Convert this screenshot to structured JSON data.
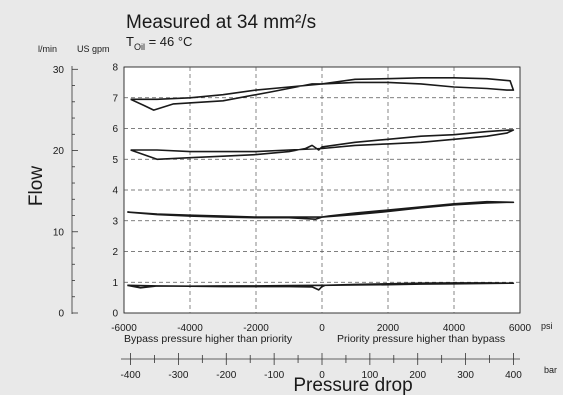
{
  "chart_data": {
    "type": "line",
    "title": "Measured at 34 mm²/s",
    "subtitle": {
      "prefix": "T",
      "sub": "Oil",
      "suffix": " = 46 °C"
    },
    "ylabel": "Flow",
    "xlabel": "Pressure drop",
    "y_units": {
      "lmin": "l/min",
      "usgpm": "US gpm"
    },
    "x_units": {
      "psi": "psi",
      "bar": "bar"
    },
    "x_annotations": {
      "left": "Bypass pressure higher than priority",
      "right": "Priority pressure higher than bypass"
    },
    "xlim_psi": [
      -6000,
      6000
    ],
    "ylim_usgpm": [
      0,
      8
    ],
    "ylim_lmin_visible": [
      0,
      30
    ],
    "psi_ticks": [
      -6000,
      -4000,
      -2000,
      0,
      2000,
      4000,
      6000
    ],
    "bar_ticks": [
      -400,
      -300,
      -200,
      -100,
      0,
      100,
      200,
      300,
      400
    ],
    "usgpm_ticks": [
      0,
      1,
      2,
      3,
      4,
      5,
      6,
      7,
      8
    ],
    "lmin_ticks": [
      0,
      10,
      20,
      30
    ],
    "grid": true,
    "series": [
      {
        "x": [
          -5800,
          -5400,
          -5100,
          -4500,
          -3000,
          -1500,
          -300,
          0,
          1000,
          2000,
          3000,
          4000,
          5000,
          5700,
          5800,
          5600,
          5000,
          4000,
          3000,
          2000,
          1000,
          0,
          -1000,
          -2000,
          -3000,
          -4000,
          -5000,
          -5500,
          -5800
        ],
        "y": [
          6.95,
          6.75,
          6.6,
          6.8,
          6.9,
          7.2,
          7.45,
          7.45,
          7.6,
          7.62,
          7.65,
          7.65,
          7.62,
          7.55,
          7.25,
          7.25,
          7.3,
          7.35,
          7.45,
          7.5,
          7.5,
          7.45,
          7.35,
          7.25,
          7.1,
          7.0,
          6.95,
          6.95,
          6.95
        ]
      },
      {
        "x": [
          -5800,
          -5000,
          -4000,
          -3000,
          -2000,
          -1000,
          -500,
          -300,
          -100,
          0,
          1000,
          2000,
          3000,
          4000,
          5000,
          5700,
          5800,
          5600,
          5000,
          4000,
          3000,
          2000,
          1000,
          0,
          -1000,
          -2000,
          -3000,
          -4000,
          -5000,
          -5600,
          -5800
        ],
        "y": [
          5.3,
          5.0,
          5.05,
          5.1,
          5.15,
          5.25,
          5.35,
          5.45,
          5.3,
          5.4,
          5.55,
          5.65,
          5.75,
          5.8,
          5.9,
          5.95,
          5.95,
          5.85,
          5.75,
          5.65,
          5.55,
          5.5,
          5.45,
          5.35,
          5.3,
          5.25,
          5.25,
          5.25,
          5.3,
          5.3,
          5.3
        ]
      },
      {
        "x": [
          -5900,
          -5000,
          -4000,
          -3000,
          -2000,
          -1000,
          -200,
          0,
          200,
          1000,
          2000,
          3000,
          4000,
          5000,
          5800,
          5600,
          5000,
          4000,
          3000,
          2000,
          1000,
          0,
          -1000,
          -2000,
          -3000,
          -4000,
          -5000,
          -5900
        ],
        "y": [
          3.28,
          3.2,
          3.15,
          3.12,
          3.1,
          3.1,
          3.05,
          3.12,
          3.15,
          3.25,
          3.35,
          3.45,
          3.55,
          3.62,
          3.6,
          3.6,
          3.58,
          3.52,
          3.42,
          3.3,
          3.2,
          3.12,
          3.12,
          3.12,
          3.15,
          3.18,
          3.22,
          3.28
        ]
      },
      {
        "x": [
          -5900,
          -5500,
          -5000,
          -4000,
          -3000,
          -2000,
          -1000,
          -300,
          -100,
          0,
          100,
          1000,
          2000,
          3000,
          4000,
          5000,
          5800,
          5000,
          4000,
          3000,
          2000,
          1000,
          0,
          -1000,
          -2000,
          -3000,
          -4000,
          -5000,
          -5900
        ],
        "y": [
          0.9,
          0.82,
          0.88,
          0.87,
          0.86,
          0.86,
          0.86,
          0.85,
          0.75,
          0.86,
          0.9,
          0.93,
          0.95,
          0.97,
          0.98,
          0.98,
          0.97,
          0.96,
          0.95,
          0.94,
          0.92,
          0.91,
          0.9,
          0.89,
          0.88,
          0.88,
          0.87,
          0.88,
          0.9
        ]
      }
    ]
  }
}
